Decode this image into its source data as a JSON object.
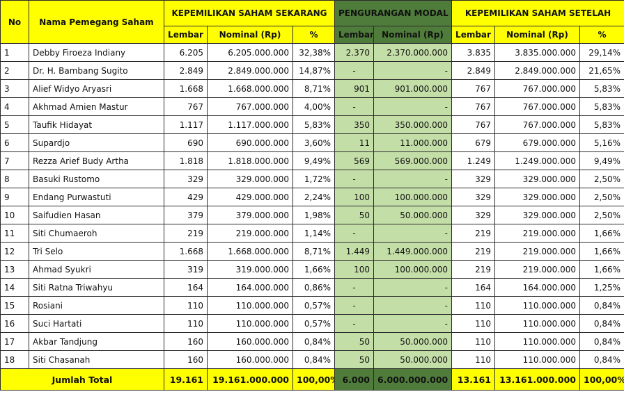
{
  "headers": {
    "no": "No",
    "name": "Nama Pemegang Saham",
    "group_current": "KEPEMILIKAN SAHAM SEKARANG",
    "group_reduction": "PENGURANGAN MODAL",
    "group_after": "KEPEMILIKAN SAHAM SETELAH",
    "lembar": "Lembar",
    "nominal": "Nominal (Rp)",
    "percent": "%"
  },
  "rows": [
    {
      "no": "1",
      "name": "Debby Firoeza Indiany",
      "cur_lembar": "6.205",
      "cur_nominal": "6.205.000.000",
      "cur_pct": "32,38%",
      "red_lembar": "2.370",
      "red_nominal": "2.370.000.000",
      "aft_lembar": "3.835",
      "aft_nominal": "3.835.000.000",
      "aft_pct": "29,14%"
    },
    {
      "no": "2",
      "name": "Dr. H. Bambang Sugito",
      "cur_lembar": "2.849",
      "cur_nominal": "2.849.000.000",
      "cur_pct": "14,87%",
      "red_lembar": "-",
      "red_nominal": "-",
      "aft_lembar": "2.849",
      "aft_nominal": "2.849.000.000",
      "aft_pct": "21,65%"
    },
    {
      "no": "3",
      "name": "Alief Widyo Aryasri",
      "cur_lembar": "1.668",
      "cur_nominal": "1.668.000.000",
      "cur_pct": "8,71%",
      "red_lembar": "901",
      "red_nominal": "901.000.000",
      "aft_lembar": "767",
      "aft_nominal": "767.000.000",
      "aft_pct": "5,83%"
    },
    {
      "no": "4",
      "name": "Akhmad Amien Mastur",
      "cur_lembar": "767",
      "cur_nominal": "767.000.000",
      "cur_pct": "4,00%",
      "red_lembar": "-",
      "red_nominal": "-",
      "aft_lembar": "767",
      "aft_nominal": "767.000.000",
      "aft_pct": "5,83%"
    },
    {
      "no": "5",
      "name": "Taufik Hidayat",
      "cur_lembar": "1.117",
      "cur_nominal": "1.117.000.000",
      "cur_pct": "5,83%",
      "red_lembar": "350",
      "red_nominal": "350.000.000",
      "aft_lembar": "767",
      "aft_nominal": "767.000.000",
      "aft_pct": "5,83%"
    },
    {
      "no": "6",
      "name": "Supardjo",
      "cur_lembar": "690",
      "cur_nominal": "690.000.000",
      "cur_pct": "3,60%",
      "red_lembar": "11",
      "red_nominal": "11.000.000",
      "aft_lembar": "679",
      "aft_nominal": "679.000.000",
      "aft_pct": "5,16%"
    },
    {
      "no": "7",
      "name": "Rezza Arief Budy Artha",
      "cur_lembar": "1.818",
      "cur_nominal": "1.818.000.000",
      "cur_pct": "9,49%",
      "red_lembar": "569",
      "red_nominal": "569.000.000",
      "aft_lembar": "1.249",
      "aft_nominal": "1.249.000.000",
      "aft_pct": "9,49%"
    },
    {
      "no": "8",
      "name": "Basuki Rustomo",
      "cur_lembar": "329",
      "cur_nominal": "329.000.000",
      "cur_pct": "1,72%",
      "red_lembar": "-",
      "red_nominal": "-",
      "aft_lembar": "329",
      "aft_nominal": "329.000.000",
      "aft_pct": "2,50%"
    },
    {
      "no": "9",
      "name": "Endang Purwastuti",
      "cur_lembar": "429",
      "cur_nominal": "429.000.000",
      "cur_pct": "2,24%",
      "red_lembar": "100",
      "red_nominal": "100.000.000",
      "aft_lembar": "329",
      "aft_nominal": "329.000.000",
      "aft_pct": "2,50%"
    },
    {
      "no": "10",
      "name": "Saifudien Hasan",
      "cur_lembar": "379",
      "cur_nominal": "379.000.000",
      "cur_pct": "1,98%",
      "red_lembar": "50",
      "red_nominal": "50.000.000",
      "aft_lembar": "329",
      "aft_nominal": "329.000.000",
      "aft_pct": "2,50%"
    },
    {
      "no": "11",
      "name": "Siti Chumaeroh",
      "cur_lembar": "219",
      "cur_nominal": "219.000.000",
      "cur_pct": "1,14%",
      "red_lembar": "-",
      "red_nominal": "-",
      "aft_lembar": "219",
      "aft_nominal": "219.000.000",
      "aft_pct": "1,66%"
    },
    {
      "no": "12",
      "name": "Tri Selo",
      "cur_lembar": "1.668",
      "cur_nominal": "1.668.000.000",
      "cur_pct": "8,71%",
      "red_lembar": "1.449",
      "red_nominal": "1.449.000.000",
      "aft_lembar": "219",
      "aft_nominal": "219.000.000",
      "aft_pct": "1,66%"
    },
    {
      "no": "13",
      "name": "Ahmad Syukri",
      "cur_lembar": "319",
      "cur_nominal": "319.000.000",
      "cur_pct": "1,66%",
      "red_lembar": "100",
      "red_nominal": "100.000.000",
      "aft_lembar": "219",
      "aft_nominal": "219.000.000",
      "aft_pct": "1,66%"
    },
    {
      "no": "14",
      "name": "Siti Ratna Triwahyu",
      "cur_lembar": "164",
      "cur_nominal": "164.000.000",
      "cur_pct": "0,86%",
      "red_lembar": "-",
      "red_nominal": "-",
      "aft_lembar": "164",
      "aft_nominal": "164.000.000",
      "aft_pct": "1,25%"
    },
    {
      "no": "15",
      "name": "Rosiani",
      "cur_lembar": "110",
      "cur_nominal": "110.000.000",
      "cur_pct": "0,57%",
      "red_lembar": "-",
      "red_nominal": "-",
      "aft_lembar": "110",
      "aft_nominal": "110.000.000",
      "aft_pct": "0,84%"
    },
    {
      "no": "16",
      "name": "Suci Hartati",
      "cur_lembar": "110",
      "cur_nominal": "110.000.000",
      "cur_pct": "0,57%",
      "red_lembar": "-",
      "red_nominal": "-",
      "aft_lembar": "110",
      "aft_nominal": "110.000.000",
      "aft_pct": "0,84%"
    },
    {
      "no": "17",
      "name": "Akbar Tandjung",
      "cur_lembar": "160",
      "cur_nominal": "160.000.000",
      "cur_pct": "0,84%",
      "red_lembar": "50",
      "red_nominal": "50.000.000",
      "aft_lembar": "110",
      "aft_nominal": "110.000.000",
      "aft_pct": "0,84%"
    },
    {
      "no": "18",
      "name": "Siti Chasanah",
      "cur_lembar": "160",
      "cur_nominal": "160.000.000",
      "cur_pct": "0,84%",
      "red_lembar": "50",
      "red_nominal": "50.000.000",
      "aft_lembar": "110",
      "aft_nominal": "110.000.000",
      "aft_pct": "0,84%"
    }
  ],
  "total": {
    "label": "Jumlah Total",
    "cur_lembar": "19.161",
    "cur_nominal": "19.161.000.000",
    "cur_pct": "100,00%",
    "red_lembar": "6.000",
    "red_nominal": "6.000.000.000",
    "aft_lembar": "13.161",
    "aft_nominal": "13.161.000.000",
    "aft_pct": "100,00%"
  },
  "colors": {
    "header_yellow": "#ffff00",
    "reduction_header_green": "#4f7c3a",
    "reduction_cell_green": "#c4dea8"
  }
}
